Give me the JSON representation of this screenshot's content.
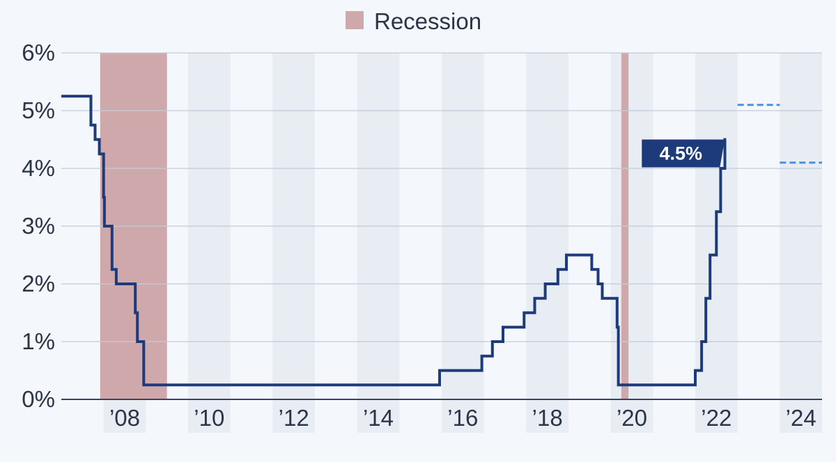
{
  "chart_data": {
    "type": "line",
    "step": true,
    "title": "",
    "xlabel": "",
    "ylabel": "",
    "ylim": [
      0,
      6
    ],
    "yticks": [
      0,
      1,
      2,
      3,
      4,
      5,
      6
    ],
    "ytick_labels": [
      "0%",
      "1%",
      "2%",
      "3%",
      "4%",
      "5%",
      "6%"
    ],
    "xlim": [
      2006.5,
      2024.5
    ],
    "xticks": [
      2008,
      2010,
      2012,
      2014,
      2016,
      2018,
      2020,
      2022,
      2024
    ],
    "xtick_labels": [
      "’08",
      "’10",
      "’12",
      "’14",
      "’16",
      "’18",
      "’20",
      "’22",
      "’24"
    ],
    "grid": true,
    "legend": {
      "position": "top-center",
      "entries": [
        {
          "label": "Recession",
          "color": "#cfa8ab"
        }
      ]
    },
    "recessions": [
      {
        "start": 2007.42,
        "end": 2009.0
      },
      {
        "start": 2019.75,
        "end": 2019.92
      }
    ],
    "series": [
      {
        "color": "#1d3b7a",
        "points": [
          [
            2006.5,
            5.25
          ],
          [
            2007.2,
            5.25
          ],
          [
            2007.2,
            4.75
          ],
          [
            2007.3,
            4.75
          ],
          [
            2007.3,
            4.5
          ],
          [
            2007.4,
            4.5
          ],
          [
            2007.4,
            4.25
          ],
          [
            2007.5,
            4.25
          ],
          [
            2007.5,
            3.5
          ],
          [
            2007.52,
            3.5
          ],
          [
            2007.52,
            3.0
          ],
          [
            2007.7,
            3.0
          ],
          [
            2007.7,
            2.25
          ],
          [
            2007.8,
            2.25
          ],
          [
            2007.8,
            2.0
          ],
          [
            2008.25,
            2.0
          ],
          [
            2008.25,
            1.5
          ],
          [
            2008.3,
            1.5
          ],
          [
            2008.3,
            1.0
          ],
          [
            2008.45,
            1.0
          ],
          [
            2008.45,
            0.25
          ],
          [
            2015.45,
            0.25
          ],
          [
            2015.45,
            0.5
          ],
          [
            2016.45,
            0.5
          ],
          [
            2016.45,
            0.75
          ],
          [
            2016.7,
            0.75
          ],
          [
            2016.7,
            1.0
          ],
          [
            2016.95,
            1.0
          ],
          [
            2016.95,
            1.25
          ],
          [
            2017.45,
            1.25
          ],
          [
            2017.45,
            1.5
          ],
          [
            2017.7,
            1.5
          ],
          [
            2017.7,
            1.75
          ],
          [
            2017.95,
            1.75
          ],
          [
            2017.95,
            2.0
          ],
          [
            2018.25,
            2.0
          ],
          [
            2018.25,
            2.25
          ],
          [
            2018.45,
            2.25
          ],
          [
            2018.45,
            2.5
          ],
          [
            2019.05,
            2.5
          ],
          [
            2019.05,
            2.25
          ],
          [
            2019.2,
            2.25
          ],
          [
            2019.2,
            2.0
          ],
          [
            2019.3,
            2.0
          ],
          [
            2019.3,
            1.75
          ],
          [
            2019.65,
            1.75
          ],
          [
            2019.65,
            1.25
          ],
          [
            2019.68,
            1.25
          ],
          [
            2019.68,
            0.25
          ],
          [
            2021.5,
            0.25
          ],
          [
            2021.5,
            0.5
          ],
          [
            2021.65,
            0.5
          ],
          [
            2021.65,
            1.0
          ],
          [
            2021.75,
            1.0
          ],
          [
            2021.75,
            1.75
          ],
          [
            2021.85,
            1.75
          ],
          [
            2021.85,
            2.5
          ],
          [
            2022.0,
            2.5
          ],
          [
            2022.0,
            3.25
          ],
          [
            2022.1,
            3.25
          ],
          [
            2022.1,
            4.0
          ],
          [
            2022.2,
            4.0
          ],
          [
            2022.2,
            4.5
          ],
          [
            2022.23,
            4.5
          ]
        ]
      }
    ],
    "projections": [
      {
        "x_start": 2022.5,
        "x_end": 2023.5,
        "y": 5.1,
        "color": "#4a90e2"
      },
      {
        "x_start": 2023.5,
        "x_end": 2024.5,
        "y": 4.1,
        "color": "#4a90e2"
      }
    ],
    "annotations": [
      {
        "label": "4.5%",
        "x": 2022.23,
        "y": 4.5
      }
    ]
  }
}
